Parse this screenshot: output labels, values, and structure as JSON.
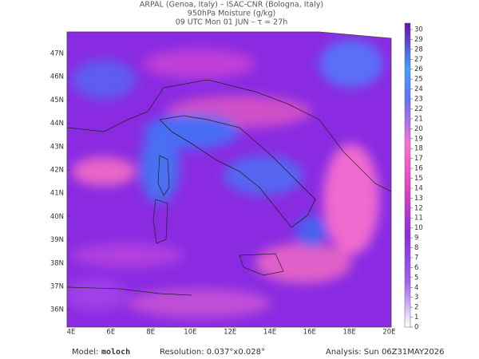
{
  "header": {
    "line1": "ARPAL (Genoa, Italy)  –  ISAC-CNR (Bologna, Italy)",
    "line2": "950hPa Moisture (g/kg)",
    "line3": "09 UTC Mon 01 JUN  –  τ = 27h"
  },
  "map": {
    "lat_labels": [
      "47N",
      "46N",
      "45N",
      "44N",
      "43N",
      "42N",
      "41N",
      "40N",
      "39N",
      "38N",
      "37N",
      "36N"
    ],
    "lon_labels": [
      "4E",
      "6E",
      "8E",
      "10E",
      "12E",
      "14E",
      "16E",
      "18E",
      "20E"
    ]
  },
  "colorbar": {
    "ticks": [
      0,
      1,
      2,
      3,
      4,
      5,
      6,
      7,
      8,
      9,
      10,
      11,
      12,
      13,
      14,
      15,
      16,
      17,
      18,
      19,
      20,
      21,
      22,
      23,
      24,
      25,
      26,
      27,
      28,
      29,
      30
    ]
  },
  "footer": {
    "model_label": "Model:",
    "model": "moloch",
    "resolution": "Resolution: 0.037°x0.028°",
    "analysis": "Analysis: Sun 06Z31MAY2026"
  }
}
